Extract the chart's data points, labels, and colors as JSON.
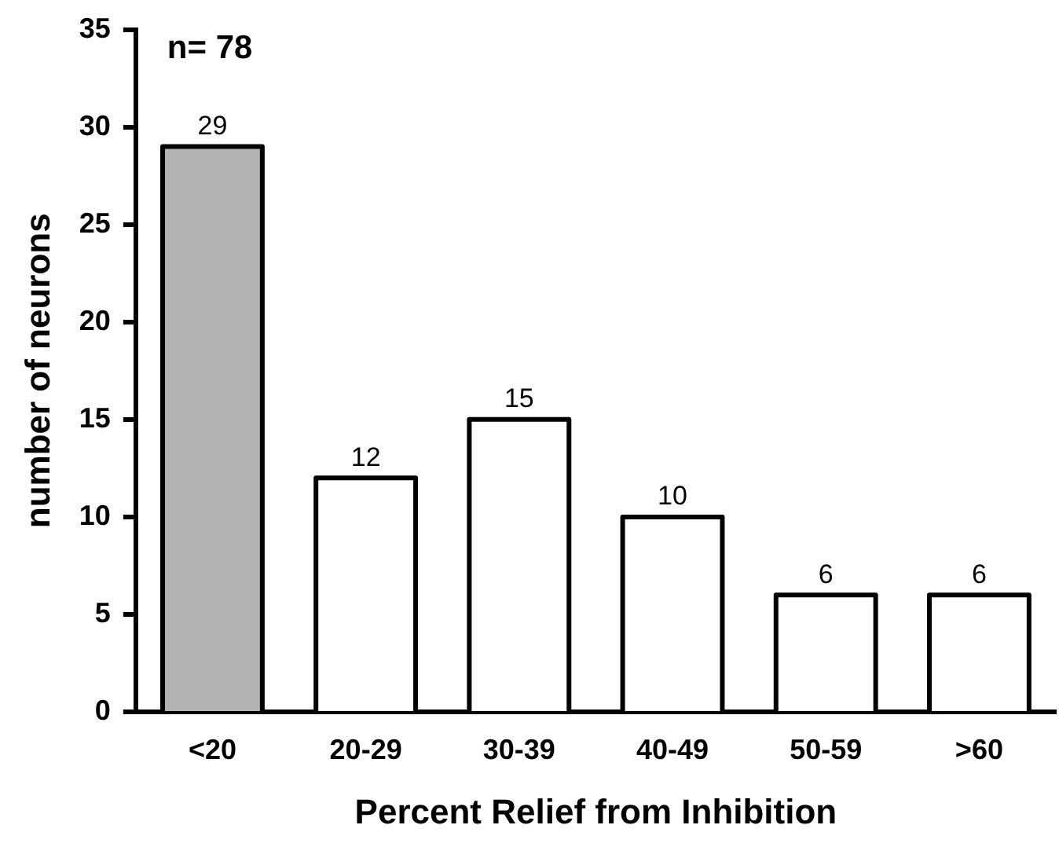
{
  "chart_data": {
    "type": "bar",
    "categories": [
      "<20",
      "20-29",
      "30-39",
      "40-49",
      "50-59",
      ">60"
    ],
    "values": [
      29,
      12,
      15,
      10,
      6,
      6
    ],
    "colors": [
      "#b3b3b3",
      "#ffffff",
      "#ffffff",
      "#ffffff",
      "#ffffff",
      "#ffffff"
    ],
    "ylim": [
      0,
      35
    ],
    "yticks": [
      0,
      5,
      10,
      15,
      20,
      25,
      30,
      35
    ],
    "xlabel": "Percent Relief from Inhibition",
    "ylabel": "number of neurons",
    "annotations": [
      "n= 78"
    ],
    "data_labels": true,
    "grid": false,
    "legend": false
  }
}
